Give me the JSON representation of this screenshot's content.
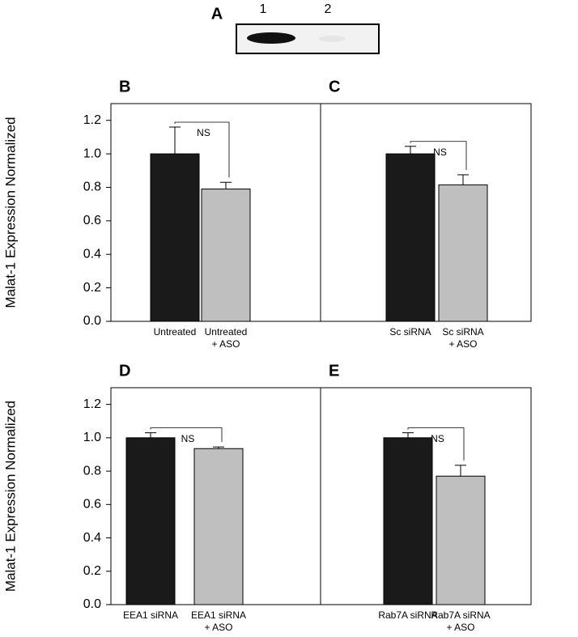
{
  "blot": {
    "label": "A",
    "lanes": [
      "1",
      "2"
    ]
  },
  "chart_data": [
    {
      "type": "bar",
      "panel": "B",
      "ylabel": "Malat-1 Expression Normalized",
      "categories": [
        [
          "Untreated"
        ],
        [
          "Untreated",
          "+ ASO"
        ]
      ],
      "values": [
        1.0,
        0.79
      ],
      "errors": [
        0.16,
        0.04
      ],
      "colors": [
        "#1a1a1a",
        "#bfbfbf"
      ],
      "annotation": "NS",
      "ylim": [
        0,
        1.3
      ],
      "yticks": [
        {
          "value": 0,
          "label": "0.0"
        },
        {
          "value": 0.2,
          "label": "0.2"
        },
        {
          "value": 0.4,
          "label": "0.4"
        },
        {
          "value": 0.6,
          "label": "0.6"
        },
        {
          "value": 0.8,
          "label": "0.8"
        },
        {
          "value": 1.0,
          "label": "1.0"
        },
        {
          "value": 1.2,
          "label": "1.2"
        }
      ]
    },
    {
      "type": "bar",
      "panel": "C",
      "categories": [
        [
          "Sc siRNA"
        ],
        [
          "Sc siRNA",
          "+ ASO"
        ]
      ],
      "values": [
        1.0,
        0.815
      ],
      "errors": [
        0.045,
        0.06
      ],
      "colors": [
        "#1a1a1a",
        "#bfbfbf"
      ],
      "annotation": "NS",
      "ylim": [
        0,
        1.3
      ]
    },
    {
      "type": "bar",
      "panel": "D",
      "ylabel": "Malat-1 Expression Normalized",
      "categories": [
        [
          "EEA1 siRNA"
        ],
        [
          "EEA1 siRNA",
          "+ ASO"
        ]
      ],
      "values": [
        1.0,
        0.935
      ],
      "errors": [
        0.03,
        0.01
      ],
      "colors": [
        "#1a1a1a",
        "#bfbfbf"
      ],
      "annotation": "NS",
      "ylim": [
        0,
        1.3
      ],
      "yticks": [
        {
          "value": 0,
          "label": "0.0"
        },
        {
          "value": 0.2,
          "label": "0.2"
        },
        {
          "value": 0.4,
          "label": "0.4"
        },
        {
          "value": 0.6,
          "label": "0.6"
        },
        {
          "value": 0.8,
          "label": "0.8"
        },
        {
          "value": 1.0,
          "label": "1.0"
        },
        {
          "value": 1.2,
          "label": "1.2"
        }
      ]
    },
    {
      "type": "bar",
      "panel": "E",
      "categories": [
        [
          "Rab7A siRNA"
        ],
        [
          "Rab7A siRNA",
          "+ ASO"
        ]
      ],
      "values": [
        1.0,
        0.77
      ],
      "errors": [
        0.03,
        0.065
      ],
      "colors": [
        "#1a1a1a",
        "#bfbfbf"
      ],
      "annotation": "NS",
      "ylim": [
        0,
        1.3
      ]
    }
  ]
}
